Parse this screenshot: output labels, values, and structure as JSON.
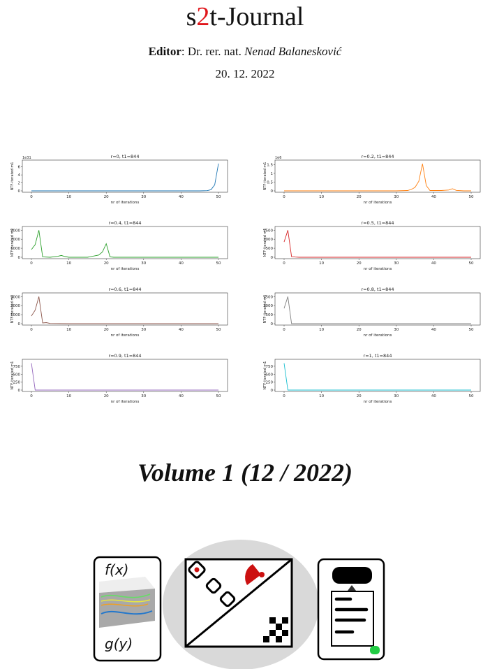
{
  "header": {
    "title_part1": "s",
    "title_accent": "2",
    "title_part2": "t-Journal",
    "editor_label": "Editor",
    "editor_colon": ":",
    "editor_degree": "Dr. rer. nat.",
    "editor_name": "Nenad Balanesković",
    "date": "20. 12. 2022"
  },
  "volume": "Volume 1 (12 / 2022)",
  "logos": {
    "left_top_text": "f(x)",
    "left_bottom_text": "g(y)"
  },
  "chart_data": [
    {
      "type": "line",
      "title": "r=0, t1=844",
      "xlabel": "nr of iterations",
      "ylabel": "NTF-iterated m1",
      "color": "#1f77b4",
      "scale_label": "1e31",
      "xlim": [
        0,
        50
      ],
      "ylim": [
        0,
        7
      ],
      "yticks": [
        0,
        2,
        4,
        6
      ],
      "xticks": [
        0,
        10,
        20,
        30,
        40,
        50
      ],
      "x": [
        0,
        5,
        10,
        15,
        20,
        25,
        30,
        35,
        40,
        45,
        47,
        48,
        49,
        50
      ],
      "y": [
        0,
        0,
        0,
        0,
        0,
        0,
        0,
        0,
        0,
        0,
        0.05,
        0.3,
        1.5,
        6.8
      ]
    },
    {
      "type": "line",
      "title": "r=0.2, t1=844",
      "xlabel": "nr of iterations",
      "ylabel": "NTF-iterated m1",
      "color": "#ff7f0e",
      "scale_label": "1e6",
      "xlim": [
        0,
        50
      ],
      "ylim": [
        0,
        1.6
      ],
      "yticks": [
        0.0,
        0.5,
        1.0,
        1.5
      ],
      "xticks": [
        0,
        10,
        20,
        30,
        40,
        50
      ],
      "x": [
        0,
        30,
        33,
        34,
        35,
        36,
        37,
        38,
        39,
        42,
        44,
        45,
        46,
        48,
        50
      ],
      "y": [
        0,
        0,
        0.02,
        0.08,
        0.2,
        0.55,
        1.55,
        0.3,
        0.02,
        0.02,
        0.05,
        0.12,
        0.03,
        0,
        0
      ]
    },
    {
      "type": "line",
      "title": "r=0.4, t1=844",
      "xlabel": "nr of iterations",
      "ylabel": "NTF-iterated m1",
      "color": "#2ca02c",
      "xlim": [
        0,
        50
      ],
      "ylim": [
        0,
        3100
      ],
      "yticks": [
        0,
        1000,
        2000,
        3000
      ],
      "xticks": [
        0,
        10,
        20,
        30,
        40,
        50
      ],
      "x": [
        0,
        1,
        2,
        3,
        5,
        7,
        8,
        9,
        10,
        15,
        18,
        19,
        20,
        21,
        22,
        25,
        30,
        40,
        50
      ],
      "y": [
        850,
        1400,
        3000,
        50,
        0,
        100,
        200,
        80,
        0,
        0,
        250,
        600,
        1500,
        50,
        0,
        0,
        0,
        0,
        0
      ]
    },
    {
      "type": "line",
      "title": "r=0.5, t1=844",
      "xlabel": "nr of iterations",
      "ylabel": "NTF-iterated m1",
      "color": "#d62728",
      "xlim": [
        0,
        50
      ],
      "ylim": [
        0,
        1550
      ],
      "yticks": [
        0,
        500,
        1000,
        1500
      ],
      "xticks": [
        0,
        10,
        20,
        30,
        40,
        50
      ],
      "x": [
        0,
        1,
        2,
        3,
        4,
        10,
        20,
        30,
        40,
        50
      ],
      "y": [
        850,
        1500,
        30,
        10,
        0,
        0,
        0,
        0,
        0,
        0
      ]
    },
    {
      "type": "line",
      "title": "r=0.6, t1=844",
      "xlabel": "nr of iterations",
      "ylabel": "NTF-iterated m1",
      "color": "#8c564b",
      "xlim": [
        0,
        50
      ],
      "ylim": [
        0,
        3100
      ],
      "yticks": [
        0,
        1000,
        2000,
        3000
      ],
      "xticks": [
        0,
        10,
        20,
        30,
        40,
        50
      ],
      "x": [
        0,
        1,
        2,
        3,
        4,
        5,
        10,
        20,
        30,
        40,
        50
      ],
      "y": [
        850,
        1500,
        3000,
        80,
        120,
        20,
        0,
        0,
        0,
        0,
        0
      ]
    },
    {
      "type": "line",
      "title": "r=0.8, t1=844",
      "xlabel": "nr of iterations",
      "ylabel": "NTF-iterated m1",
      "color": "#7f7f7f",
      "xlim": [
        0,
        50
      ],
      "ylim": [
        0,
        1550
      ],
      "yticks": [
        0,
        500,
        1000,
        1500
      ],
      "xticks": [
        0,
        10,
        20,
        30,
        40,
        50
      ],
      "x": [
        0,
        1,
        2,
        10,
        20,
        30,
        40,
        50
      ],
      "y": [
        850,
        1500,
        0,
        0,
        0,
        0,
        0,
        0
      ]
    },
    {
      "type": "line",
      "title": "r=0.9, t1=844",
      "xlabel": "nr of iterations",
      "ylabel": "NTF-iterated m1",
      "color": "#9467bd",
      "xlim": [
        0,
        50
      ],
      "ylim": [
        0,
        880
      ],
      "yticks": [
        0,
        250,
        500,
        750
      ],
      "xticks": [
        0,
        10,
        20,
        30,
        40,
        50
      ],
      "x": [
        0,
        1,
        10,
        20,
        30,
        40,
        50
      ],
      "y": [
        844,
        0,
        0,
        0,
        0,
        0,
        0
      ]
    },
    {
      "type": "line",
      "title": "r=1, t1=844",
      "xlabel": "nr of iterations",
      "ylabel": "NTF-iterated m1",
      "color": "#17becf",
      "xlim": [
        0,
        50
      ],
      "ylim": [
        0,
        880
      ],
      "yticks": [
        0,
        250,
        500,
        750
      ],
      "xticks": [
        0,
        10,
        20,
        30,
        40,
        50
      ],
      "x": [
        0,
        1,
        10,
        20,
        30,
        40,
        50
      ],
      "y": [
        844,
        0,
        0,
        0,
        0,
        0,
        0
      ]
    }
  ]
}
